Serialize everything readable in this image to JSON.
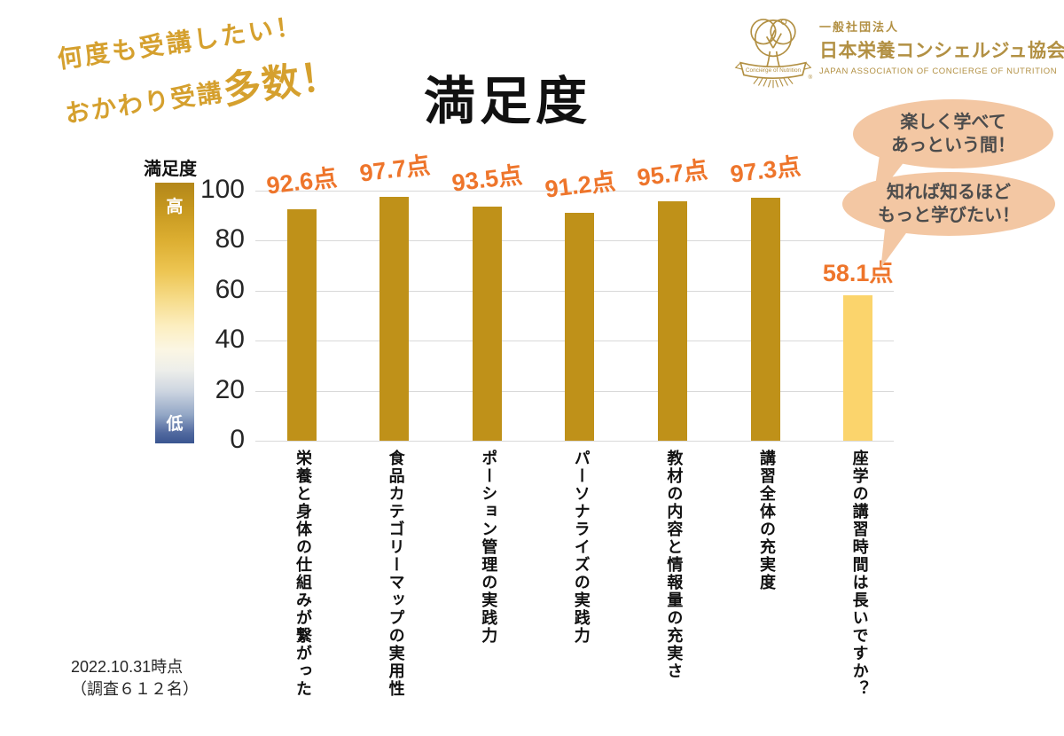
{
  "page": {
    "catch_line1": "何度も受講したい！",
    "catch_line2_normal": "おかわり受講",
    "catch_line2_big": "多数！"
  },
  "logo": {
    "org_type": "一般社団法人",
    "org_name": "日本栄養コンシェルジュ協会",
    "org_name_en": "JAPAN ASSOCIATION OF CONCIERGE OF NUTRITION",
    "emblem_caption": "Concierge of Nutrition",
    "registered_mark": "®"
  },
  "bubbles": [
    {
      "line1": "楽しく学べて",
      "line2": "あっという間！"
    },
    {
      "line1": "知れば知るほど",
      "line2": "もっと学びたい！"
    }
  ],
  "legend": {
    "title": "満足度",
    "high_label": "高",
    "low_label": "低"
  },
  "chart_data": {
    "type": "bar",
    "title": "満足度",
    "categories": [
      "栄養と身体の仕組みが繋がった",
      "食品カテゴリーマップの実用性",
      "ポーション管理の実践力",
      "パーソナライズの実践力",
      "教材の内容と情報量の充実さ",
      "講習全体の充実度",
      "座学の講習時間は長いですか？"
    ],
    "values": [
      92.6,
      97.7,
      93.5,
      91.2,
      95.7,
      97.3,
      58.1
    ],
    "value_labels": [
      "92.6点",
      "97.7点",
      "93.5点",
      "91.2点",
      "95.7点",
      "97.3点",
      "58.1点"
    ],
    "bar_colors": [
      "#bf9119",
      "#bf9119",
      "#bf9119",
      "#bf9119",
      "#bf9119",
      "#bf9119",
      "#fbd46c"
    ],
    "ylim": [
      0,
      100
    ],
    "yticks": [
      0,
      20,
      40,
      60,
      80,
      100
    ],
    "grid": true,
    "legend_position": "left-color-scale"
  },
  "footer": {
    "line1": "2022.10.31時点",
    "line2": "（調査６１２名）"
  },
  "colors": {
    "bar_gold": "#bf9119",
    "bar_light_yellow": "#fbd46c",
    "value_orange": "#ee752b",
    "catch_gold": "#d5a02e",
    "logo_gold": "#b29043",
    "bubble_peach": "#f3c7a3",
    "grid_grey": "#d9d9d9",
    "scale_high_gold": "#b3871a",
    "scale_low_blue": "#3a5590"
  }
}
